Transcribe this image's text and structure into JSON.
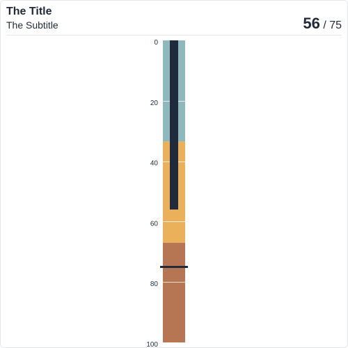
{
  "chart_data": {
    "type": "bullet",
    "orientation": "vertical",
    "title": "The Title",
    "subtitle": "The Subtitle",
    "value": 56,
    "target": 75,
    "value_label": "56",
    "target_label": "/ 75",
    "axis": {
      "min": 0,
      "max": 100,
      "ticks": [
        0,
        20,
        40,
        60,
        80,
        100
      ],
      "grid": true
    },
    "ranges": [
      {
        "from": 0,
        "to": 33.5,
        "color": "#8fb8bc"
      },
      {
        "from": 33.5,
        "to": 67,
        "color": "#ebb15a"
      },
      {
        "from": 67,
        "to": 100,
        "color": "#b67653"
      }
    ],
    "bar_color": "#1f2a3c",
    "target_color": "#1f2a3c"
  }
}
